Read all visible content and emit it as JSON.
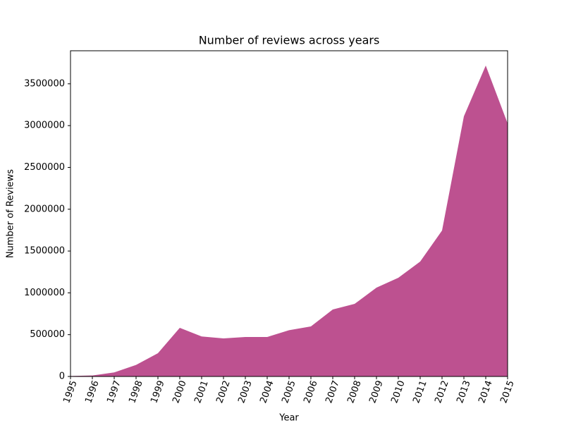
{
  "chart_data": {
    "type": "area",
    "title": "Number of reviews across years",
    "xlabel": "Year",
    "ylabel": "Number of Reviews",
    "x": [
      1995,
      1996,
      1997,
      1998,
      1999,
      2000,
      2001,
      2002,
      2003,
      2004,
      2005,
      2006,
      2007,
      2008,
      2009,
      2010,
      2011,
      2012,
      2013,
      2014,
      2015
    ],
    "values": [
      5000,
      12000,
      48000,
      138000,
      278000,
      582000,
      478000,
      455000,
      472000,
      472000,
      553000,
      599000,
      801000,
      868000,
      1062000,
      1180000,
      1374000,
      1745000,
      3111000,
      3718000,
      3027000
    ],
    "color": "#bd5190",
    "xlim": [
      1995,
      2015
    ],
    "xticks": [
      1995,
      1996,
      1997,
      1998,
      1999,
      2000,
      2001,
      2002,
      2003,
      2004,
      2005,
      2006,
      2007,
      2008,
      2009,
      2010,
      2011,
      2012,
      2013,
      2014,
      2015
    ],
    "ylim": [
      0,
      3895000
    ],
    "yticks": [
      0,
      500000,
      1000000,
      1500000,
      2000000,
      2500000,
      3000000,
      3500000
    ]
  }
}
